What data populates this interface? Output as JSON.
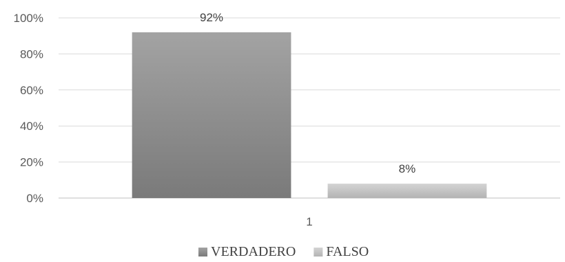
{
  "chart_data": {
    "type": "bar",
    "categories": [
      "1"
    ],
    "series": [
      {
        "name": "VERDADERO",
        "values": [
          92
        ],
        "labels": [
          "92%"
        ],
        "color": "#8c8c8c"
      },
      {
        "name": "FALSO",
        "values": [
          8
        ],
        "labels": [
          "8%"
        ],
        "color": "#c4c4c4"
      }
    ],
    "yticks": [
      "0%",
      "20%",
      "40%",
      "60%",
      "80%",
      "100%"
    ],
    "ylim": [
      0,
      100
    ],
    "grid": true,
    "legend_position": "bottom"
  }
}
